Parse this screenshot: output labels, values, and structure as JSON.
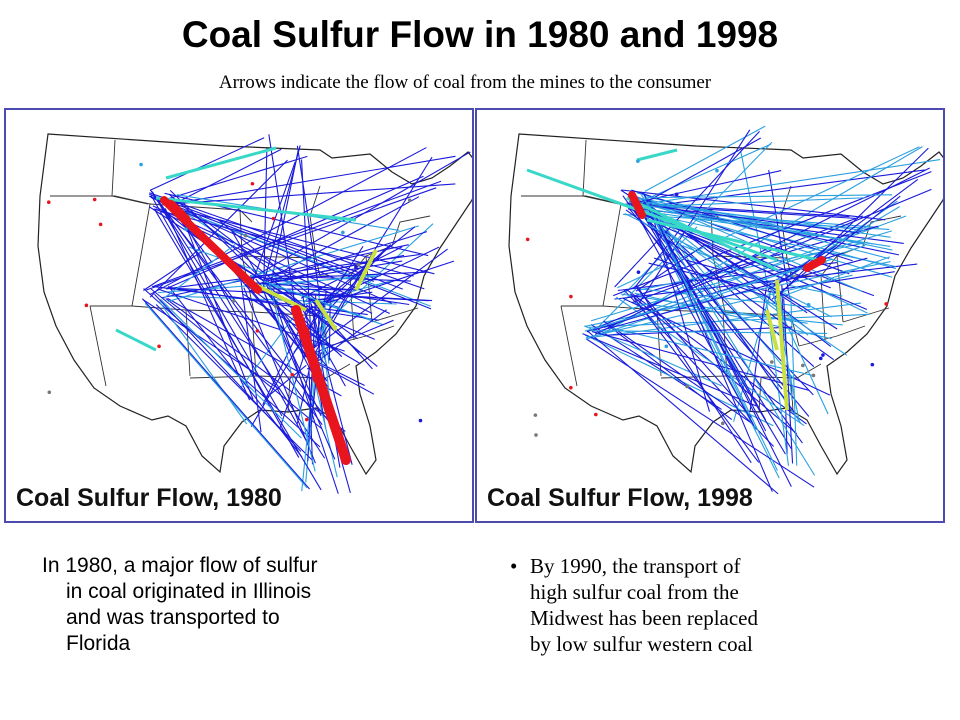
{
  "title": "Coal Sulfur Flow in 1980 and 1998",
  "subtitle": "Arrows indicate the flow of coal from the mines to the consumer",
  "maps": [
    {
      "caption": "Coal Sulfur Flow, 1980",
      "year": "1980"
    },
    {
      "caption": "Coal Sulfur Flow, 1998",
      "year": "1998"
    }
  ],
  "colors": {
    "panel_border": "#4b4bb0",
    "flow_blue": "#1a1adc",
    "flow_light_blue": "#2aa0e0",
    "flow_cyan": "#38d8c8",
    "flow_red": "#e8141e",
    "flow_yellow_green": "#c8e040"
  },
  "text_left": {
    "line1": "In 1980, a major flow of sulfur",
    "line2": "in coal originated in Illinois",
    "line3": "and was transported to",
    "line4": "Florida"
  },
  "text_right": {
    "bullet": "•",
    "line1": "By 1990, the transport of",
    "line2": "high sulfur coal from the",
    "line3": "Midwest has been replaced",
    "line4": "by low sulfur western coal"
  }
}
